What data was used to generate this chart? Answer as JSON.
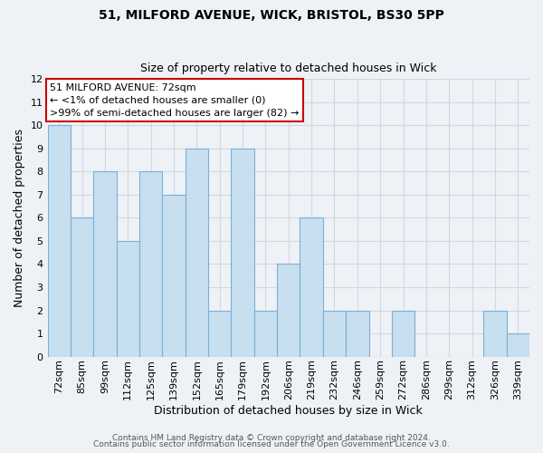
{
  "title": "51, MILFORD AVENUE, WICK, BRISTOL, BS30 5PP",
  "subtitle": "Size of property relative to detached houses in Wick",
  "xlabel": "Distribution of detached houses by size in Wick",
  "ylabel": "Number of detached properties",
  "categories": [
    "72sqm",
    "85sqm",
    "99sqm",
    "112sqm",
    "125sqm",
    "139sqm",
    "152sqm",
    "165sqm",
    "179sqm",
    "192sqm",
    "206sqm",
    "219sqm",
    "232sqm",
    "246sqm",
    "259sqm",
    "272sqm",
    "286sqm",
    "299sqm",
    "312sqm",
    "326sqm",
    "339sqm"
  ],
  "values": [
    10,
    6,
    8,
    5,
    8,
    7,
    9,
    2,
    9,
    2,
    4,
    6,
    2,
    2,
    0,
    2,
    0,
    0,
    0,
    2,
    1
  ],
  "bar_color": "#c8dff0",
  "bar_edgecolor": "#7ab0d4",
  "ylim": [
    0,
    12
  ],
  "yticks": [
    0,
    1,
    2,
    3,
    4,
    5,
    6,
    7,
    8,
    9,
    10,
    11,
    12
  ],
  "annotation_title": "51 MILFORD AVENUE: 72sqm",
  "annotation_line1": "← <1% of detached houses are smaller (0)",
  "annotation_line2": ">99% of semi-detached houses are larger (82) →",
  "annotation_box_facecolor": "#ffffff",
  "annotation_box_edgecolor": "#cc0000",
  "footer_line1": "Contains HM Land Registry data © Crown copyright and database right 2024.",
  "footer_line2": "Contains public sector information licensed under the Open Government Licence v3.0.",
  "grid_color": "#d0d8e0",
  "background_color": "#eef2f7",
  "title_fontsize": 10,
  "subtitle_fontsize": 9,
  "xlabel_fontsize": 9,
  "ylabel_fontsize": 9,
  "tick_fontsize": 8,
  "annot_fontsize": 8
}
